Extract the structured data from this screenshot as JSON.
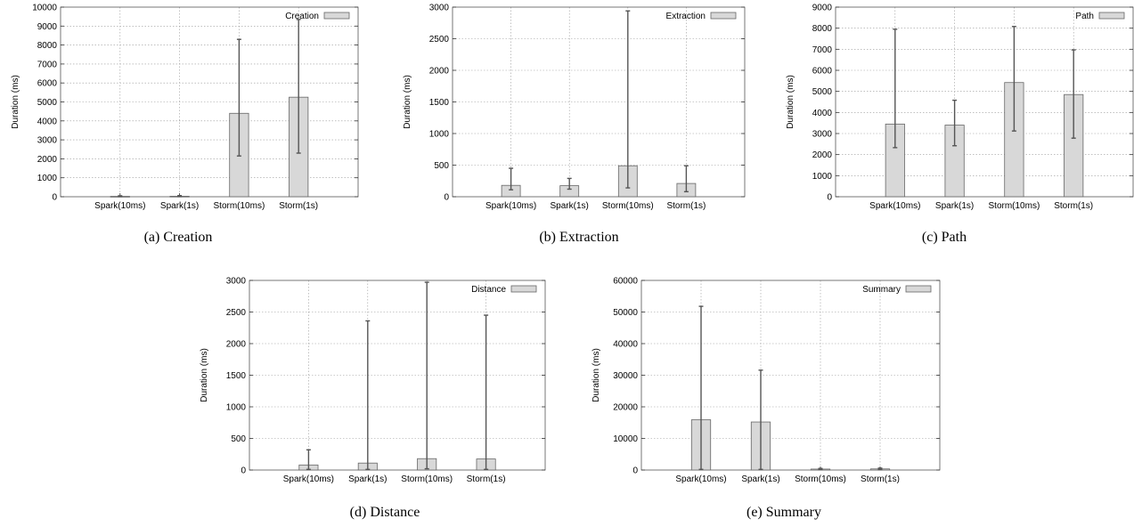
{
  "chart_data": [
    {
      "type": "bar",
      "ylabel": "Duration (ms)",
      "ylim": [
        0,
        10000
      ],
      "yticks": [
        0,
        1000,
        2000,
        3000,
        4000,
        5000,
        6000,
        7000,
        8000,
        9000,
        10000
      ],
      "categories": [
        "Spark(10ms)",
        "Spark(1s)",
        "Storm(10ms)",
        "Storm(1s)"
      ],
      "series": [
        {
          "name": "Creation",
          "values": [
            20,
            25,
            4400,
            5250
          ],
          "err_low": [
            10,
            10,
            2150,
            2300
          ],
          "err_high": [
            50,
            60,
            8300,
            9350
          ]
        }
      ],
      "grid": true,
      "legend": "top-right",
      "caption": "(a) Creation"
    },
    {
      "type": "bar",
      "ylabel": "Duration (ms)",
      "ylim": [
        0,
        3000
      ],
      "yticks": [
        0,
        500,
        1000,
        1500,
        2000,
        2500,
        3000
      ],
      "categories": [
        "Spark(10ms)",
        "Spark(1s)",
        "Storm(10ms)",
        "Storm(1s)"
      ],
      "series": [
        {
          "name": "Extraction",
          "values": [
            180,
            175,
            490,
            210
          ],
          "err_low": [
            110,
            120,
            140,
            80
          ],
          "err_high": [
            450,
            290,
            2940,
            490
          ]
        }
      ],
      "grid": true,
      "legend": "top-right",
      "caption": "(b) Extraction"
    },
    {
      "type": "bar",
      "ylabel": "Duration (ms)",
      "ylim": [
        0,
        9000
      ],
      "yticks": [
        0,
        1000,
        2000,
        3000,
        4000,
        5000,
        6000,
        7000,
        8000,
        9000
      ],
      "categories": [
        "Spark(10ms)",
        "Spark(1s)",
        "Storm(10ms)",
        "Storm(1s)"
      ],
      "series": [
        {
          "name": "Path",
          "values": [
            3450,
            3400,
            5420,
            4850
          ],
          "err_low": [
            2330,
            2420,
            3120,
            2780
          ],
          "err_high": [
            7950,
            4580,
            8080,
            6970
          ]
        }
      ],
      "grid": true,
      "legend": "top-right",
      "caption": "(c) Path"
    },
    {
      "type": "bar",
      "ylabel": "Duration (ms)",
      "ylim": [
        0,
        3000
      ],
      "yticks": [
        0,
        500,
        1000,
        1500,
        2000,
        2500,
        3000
      ],
      "categories": [
        "Spark(10ms)",
        "Spark(1s)",
        "Storm(10ms)",
        "Storm(1s)"
      ],
      "series": [
        {
          "name": "Distance",
          "values": [
            80,
            110,
            180,
            175
          ],
          "err_low": [
            10,
            10,
            20,
            10
          ],
          "err_high": [
            320,
            2360,
            2970,
            2450
          ]
        }
      ],
      "grid": true,
      "legend": "top-right",
      "caption": "(d) Distance"
    },
    {
      "type": "bar",
      "ylabel": "Duration (ms)",
      "ylim": [
        0,
        60000
      ],
      "yticks": [
        0,
        10000,
        20000,
        30000,
        40000,
        50000,
        60000
      ],
      "categories": [
        "Spark(10ms)",
        "Spark(1s)",
        "Storm(10ms)",
        "Storm(1s)"
      ],
      "series": [
        {
          "name": "Summary",
          "values": [
            15900,
            15200,
            300,
            350
          ],
          "err_low": [
            200,
            200,
            100,
            100
          ],
          "err_high": [
            51800,
            31600,
            500,
            600
          ]
        }
      ],
      "grid": true,
      "legend": "top-right",
      "caption": "(e) Summary"
    }
  ]
}
